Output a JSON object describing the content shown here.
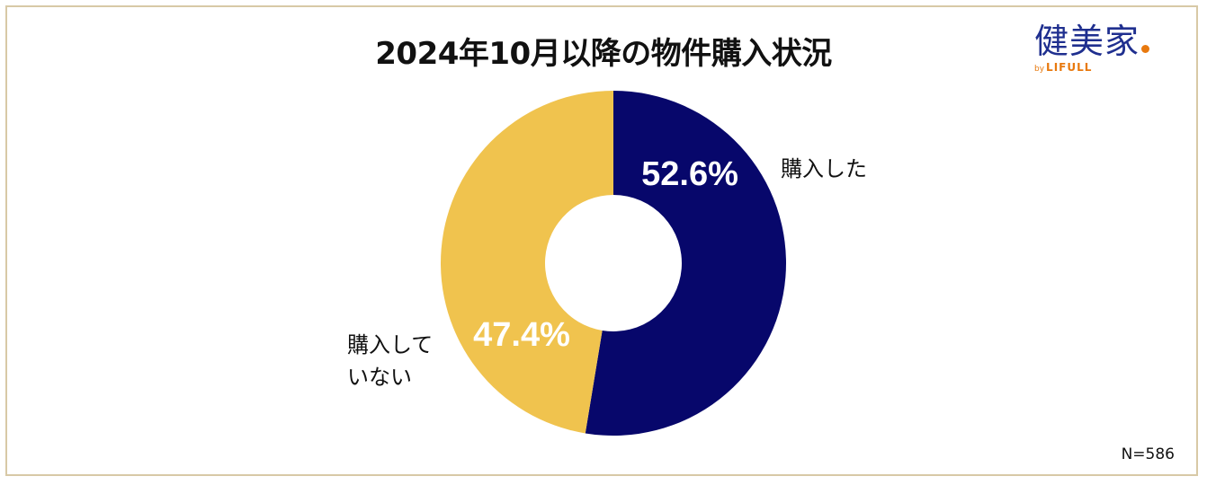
{
  "title": "2024年10月以降の物件購入状況",
  "logo": {
    "main": "健美家",
    "by": "by",
    "brand": "LIFULL"
  },
  "note": "N=586",
  "colors": {
    "purchased": "#07076b",
    "not_purchased": "#f0c34e",
    "frame": "#d8c9a6"
  },
  "chart_data": {
    "type": "pie",
    "variant": "donut",
    "title": "2024年10月以降の物件購入状況",
    "slices": [
      {
        "label": "購入した",
        "value": 52.6,
        "display": "52.6%",
        "color": "#07076b"
      },
      {
        "label": "購入して\nいない",
        "value": 47.4,
        "display": "47.4%",
        "color": "#f0c34e"
      }
    ],
    "start": "top",
    "direction": "clockwise",
    "sample_size": "N=586"
  }
}
